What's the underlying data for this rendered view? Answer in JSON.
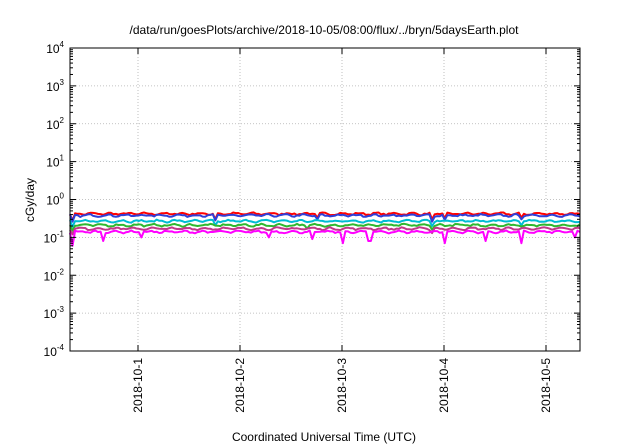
{
  "chart_data": {
    "type": "line",
    "title": "/data/run/goesPlots/archive/2018-10-05/08:00/flux/../bryn/5daysEarth.plot",
    "xlabel": "Coordinated Universal Time (UTC)",
    "ylabel": "cGy/day",
    "yscale": "log",
    "ylim": [
      0.0001,
      10000
    ],
    "xlim": [
      "2018-09-30T08:00",
      "2018-10-05T08:00"
    ],
    "grid": true,
    "y_ticks": [
      {
        "base": "10",
        "exp": "-4"
      },
      {
        "base": "10",
        "exp": "-3"
      },
      {
        "base": "10",
        "exp": "-2"
      },
      {
        "base": "10",
        "exp": "-1"
      },
      {
        "base": "10",
        "exp": "0"
      },
      {
        "base": "10",
        "exp": "1"
      },
      {
        "base": "10",
        "exp": "2"
      },
      {
        "base": "10",
        "exp": "3"
      },
      {
        "base": "10",
        "exp": "4"
      }
    ],
    "x_ticks": [
      "2018-10-1",
      "2018-10-2",
      "2018-10-3",
      "2018-10-4",
      "2018-10-5"
    ],
    "series": [
      {
        "color": "#ff0000",
        "base": 0.42,
        "dips": [
          [
            "2018-09-30T08:30",
            0.28
          ],
          [
            "2018-10-01T18:00",
            0.3
          ],
          [
            "2018-10-02T18:00",
            0.33
          ],
          [
            "2018-10-03T21:00",
            0.3
          ],
          [
            "2018-10-04T00:00",
            0.32
          ],
          [
            "2018-10-04T18:00",
            0.33
          ]
        ]
      },
      {
        "color": "#2f3fd8",
        "base": 0.38,
        "dips": [
          [
            "2018-09-30T08:30",
            0.26
          ],
          [
            "2018-10-01T18:00",
            0.28
          ],
          [
            "2018-10-02T18:00",
            0.3
          ],
          [
            "2018-10-03T21:00",
            0.26
          ],
          [
            "2018-10-04T00:00",
            0.29
          ],
          [
            "2018-10-04T18:00",
            0.3
          ]
        ]
      },
      {
        "color": "#00bcd4",
        "base": 0.27,
        "dips": [
          [
            "2018-09-30T08:30",
            0.19
          ],
          [
            "2018-10-01T18:00",
            0.21
          ],
          [
            "2018-10-03T21:00",
            0.2
          ],
          [
            "2018-10-04T18:00",
            0.21
          ]
        ]
      },
      {
        "color": "#2eb82e",
        "base": 0.21,
        "dips": [
          [
            "2018-09-30T08:30",
            0.15
          ],
          [
            "2018-10-02T16:00",
            0.17
          ],
          [
            "2018-10-03T21:00",
            0.16
          ]
        ]
      },
      {
        "color": "#c0398a",
        "base": 0.17,
        "dips": [
          [
            "2018-09-30T08:30",
            0.12
          ],
          [
            "2018-10-03T21:00",
            0.13
          ]
        ]
      },
      {
        "color": "#ff00ff",
        "base": 0.14,
        "dips": [
          [
            "2018-09-30T08:30",
            0.06
          ],
          [
            "2018-09-30T16:00",
            0.08
          ],
          [
            "2018-10-01T01:00",
            0.1
          ],
          [
            "2018-10-02T07:00",
            0.1
          ],
          [
            "2018-10-02T17:00",
            0.09
          ],
          [
            "2018-10-03T00:00",
            0.07
          ],
          [
            "2018-10-03T06:30",
            0.08
          ],
          [
            "2018-10-04T00:00",
            0.07
          ],
          [
            "2018-10-04T10:00",
            0.08
          ],
          [
            "2018-10-04T18:00",
            0.07
          ],
          [
            "2018-10-05T07:00",
            0.1
          ]
        ]
      }
    ]
  }
}
